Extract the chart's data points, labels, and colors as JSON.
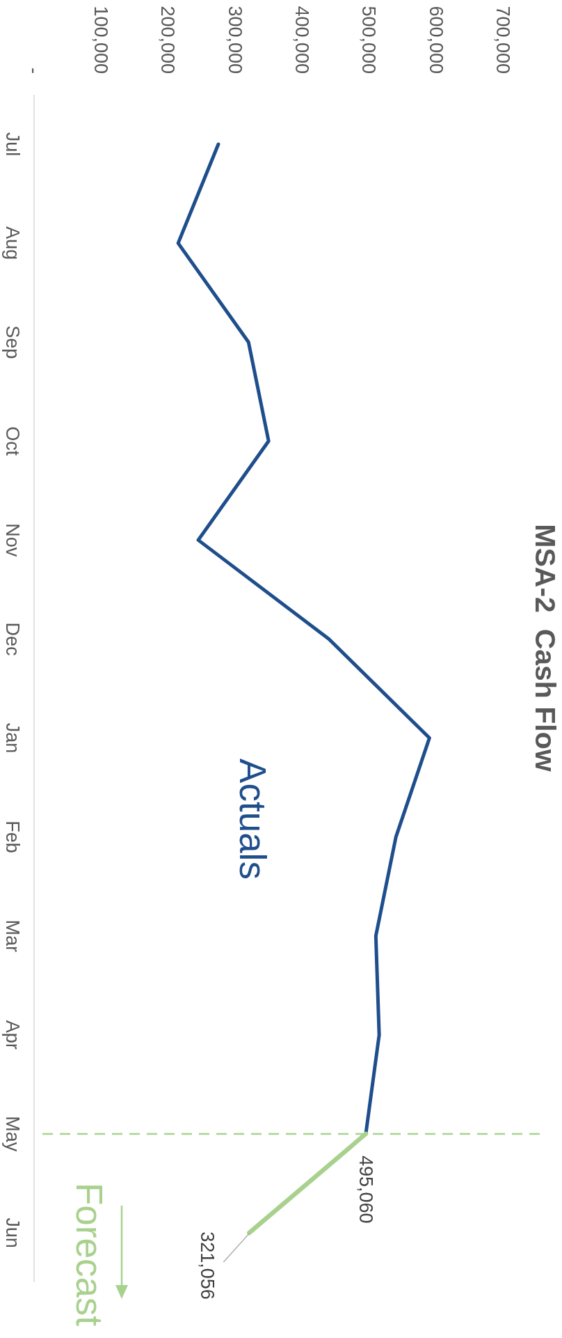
{
  "chart_data": {
    "type": "line",
    "title": "MSA-2  Cash Flow",
    "orientation": "horizontal",
    "categories": [
      "Jul",
      "Aug",
      "Sep",
      "Oct",
      "Nov",
      "Dec",
      "Jan",
      "Feb",
      "Mar",
      "Apr",
      "May",
      "Jun"
    ],
    "series": [
      {
        "name": "Actuals",
        "color": "#1f4e8c",
        "values": [
          275000,
          215000,
          320000,
          350000,
          245000,
          440000,
          590000,
          540000,
          510000,
          515000,
          495060,
          null
        ]
      },
      {
        "name": "Forecast",
        "color": "#a9d18e",
        "values": [
          null,
          null,
          null,
          null,
          null,
          null,
          null,
          null,
          null,
          null,
          495060,
          321056
        ],
        "value_labels": [
          null,
          null,
          null,
          null,
          null,
          null,
          null,
          null,
          null,
          null,
          "495,060",
          "321,056"
        ]
      }
    ],
    "xlim": [
      0,
      765000
    ],
    "xticks": [
      {
        "value": 0,
        "label": "-"
      },
      {
        "value": 100000,
        "label": "100,000"
      },
      {
        "value": 200000,
        "label": "200,000"
      },
      {
        "value": 300000,
        "label": "300,000"
      },
      {
        "value": 400000,
        "label": "400,000"
      },
      {
        "value": 500000,
        "label": "500,000"
      },
      {
        "value": 600000,
        "label": "600,000"
      },
      {
        "value": 700000,
        "label": "700,000"
      }
    ],
    "ref_lines": [
      {
        "axis": "y",
        "value": "May",
        "color": "#a9d18e",
        "line_style": "dashed"
      }
    ],
    "grid": false,
    "legend": false
  }
}
